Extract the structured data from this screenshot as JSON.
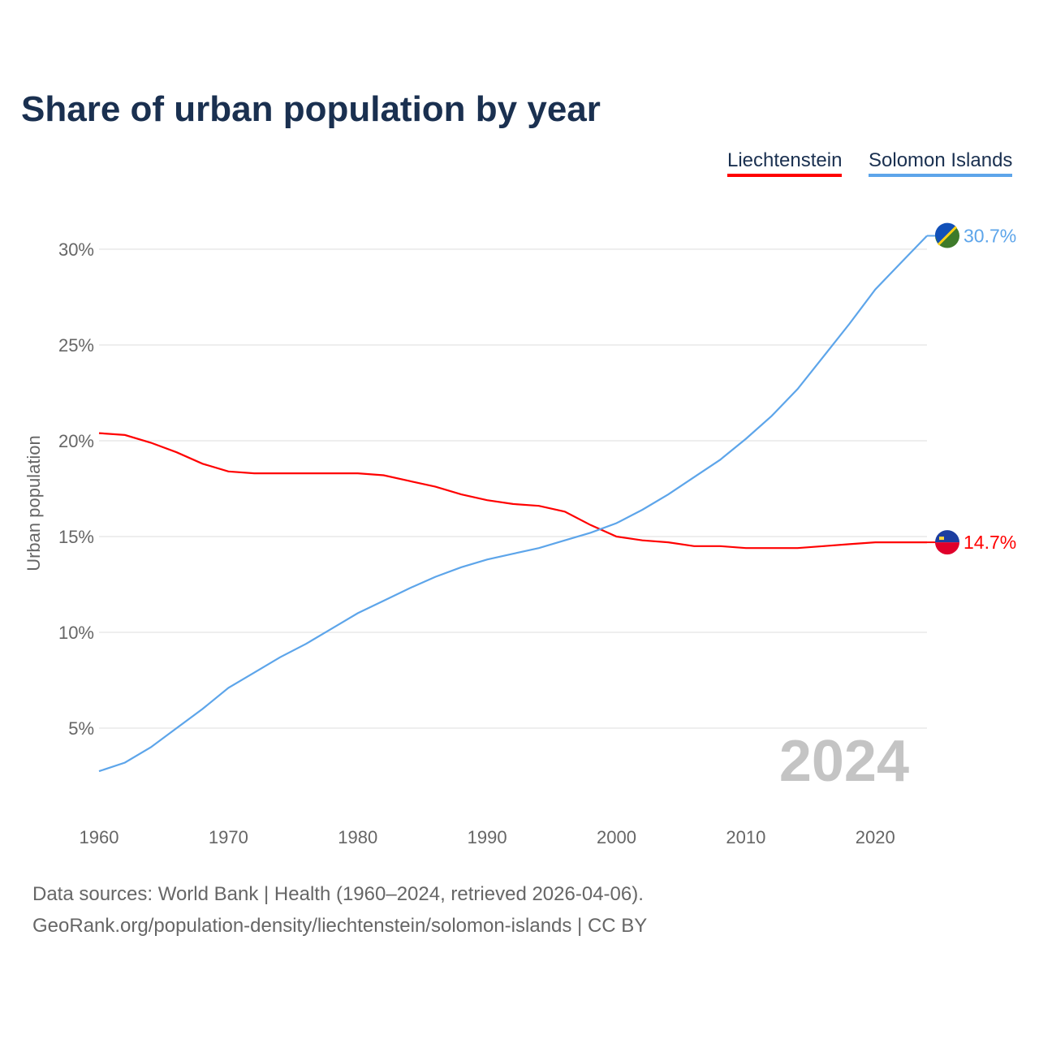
{
  "chart_data": {
    "type": "line",
    "title": "Share of urban population by year",
    "xlabel": "",
    "ylabel": "Urban population",
    "xlim": [
      1960,
      2024
    ],
    "ylim": [
      0,
      32
    ],
    "yticks": [
      5,
      10,
      15,
      20,
      25,
      30
    ],
    "ytick_labels": [
      "5%",
      "10%",
      "15%",
      "20%",
      "25%",
      "30%"
    ],
    "xticks": [
      1960,
      1970,
      1980,
      1990,
      2000,
      2010,
      2020
    ],
    "xtick_labels": [
      "1960",
      "1970",
      "1980",
      "1990",
      "2000",
      "2010",
      "2020"
    ],
    "grid": true,
    "legend_position": "top-right",
    "year_watermark": "2024",
    "x": [
      1960,
      1962,
      1964,
      1966,
      1968,
      1970,
      1972,
      1974,
      1976,
      1978,
      1980,
      1982,
      1984,
      1986,
      1988,
      1990,
      1992,
      1994,
      1996,
      1998,
      2000,
      2002,
      2004,
      2006,
      2008,
      2010,
      2012,
      2014,
      2016,
      2018,
      2020,
      2022,
      2024
    ],
    "series": [
      {
        "name": "Liechtenstein",
        "color": "#ff0000",
        "end_label": "14.7%",
        "values": [
          20.4,
          20.3,
          19.9,
          19.4,
          18.8,
          18.4,
          18.3,
          18.3,
          18.3,
          18.3,
          18.3,
          18.2,
          17.9,
          17.6,
          17.2,
          16.9,
          16.7,
          16.6,
          16.3,
          15.6,
          15.0,
          14.8,
          14.7,
          14.5,
          14.5,
          14.4,
          14.4,
          14.4,
          14.5,
          14.6,
          14.7,
          14.7,
          14.7
        ]
      },
      {
        "name": "Solomon Islands",
        "color": "#5da5ea",
        "end_label": "30.7%",
        "values": [
          2.75,
          3.2,
          4.0,
          5.0,
          6.0,
          7.1,
          7.9,
          8.7,
          9.4,
          10.2,
          11.0,
          11.65,
          12.3,
          12.9,
          13.4,
          13.8,
          14.1,
          14.4,
          14.8,
          15.2,
          15.7,
          16.4,
          17.2,
          18.1,
          19.0,
          20.1,
          21.3,
          22.7,
          24.4,
          26.1,
          27.9,
          29.3,
          30.7
        ]
      }
    ]
  },
  "footer": {
    "line1": "Data sources: World Bank | Health (1960–2024, retrieved 2026-04-06).",
    "line2": "GeoRank.org/population-density/liechtenstein/solomon-islands | CC BY"
  }
}
